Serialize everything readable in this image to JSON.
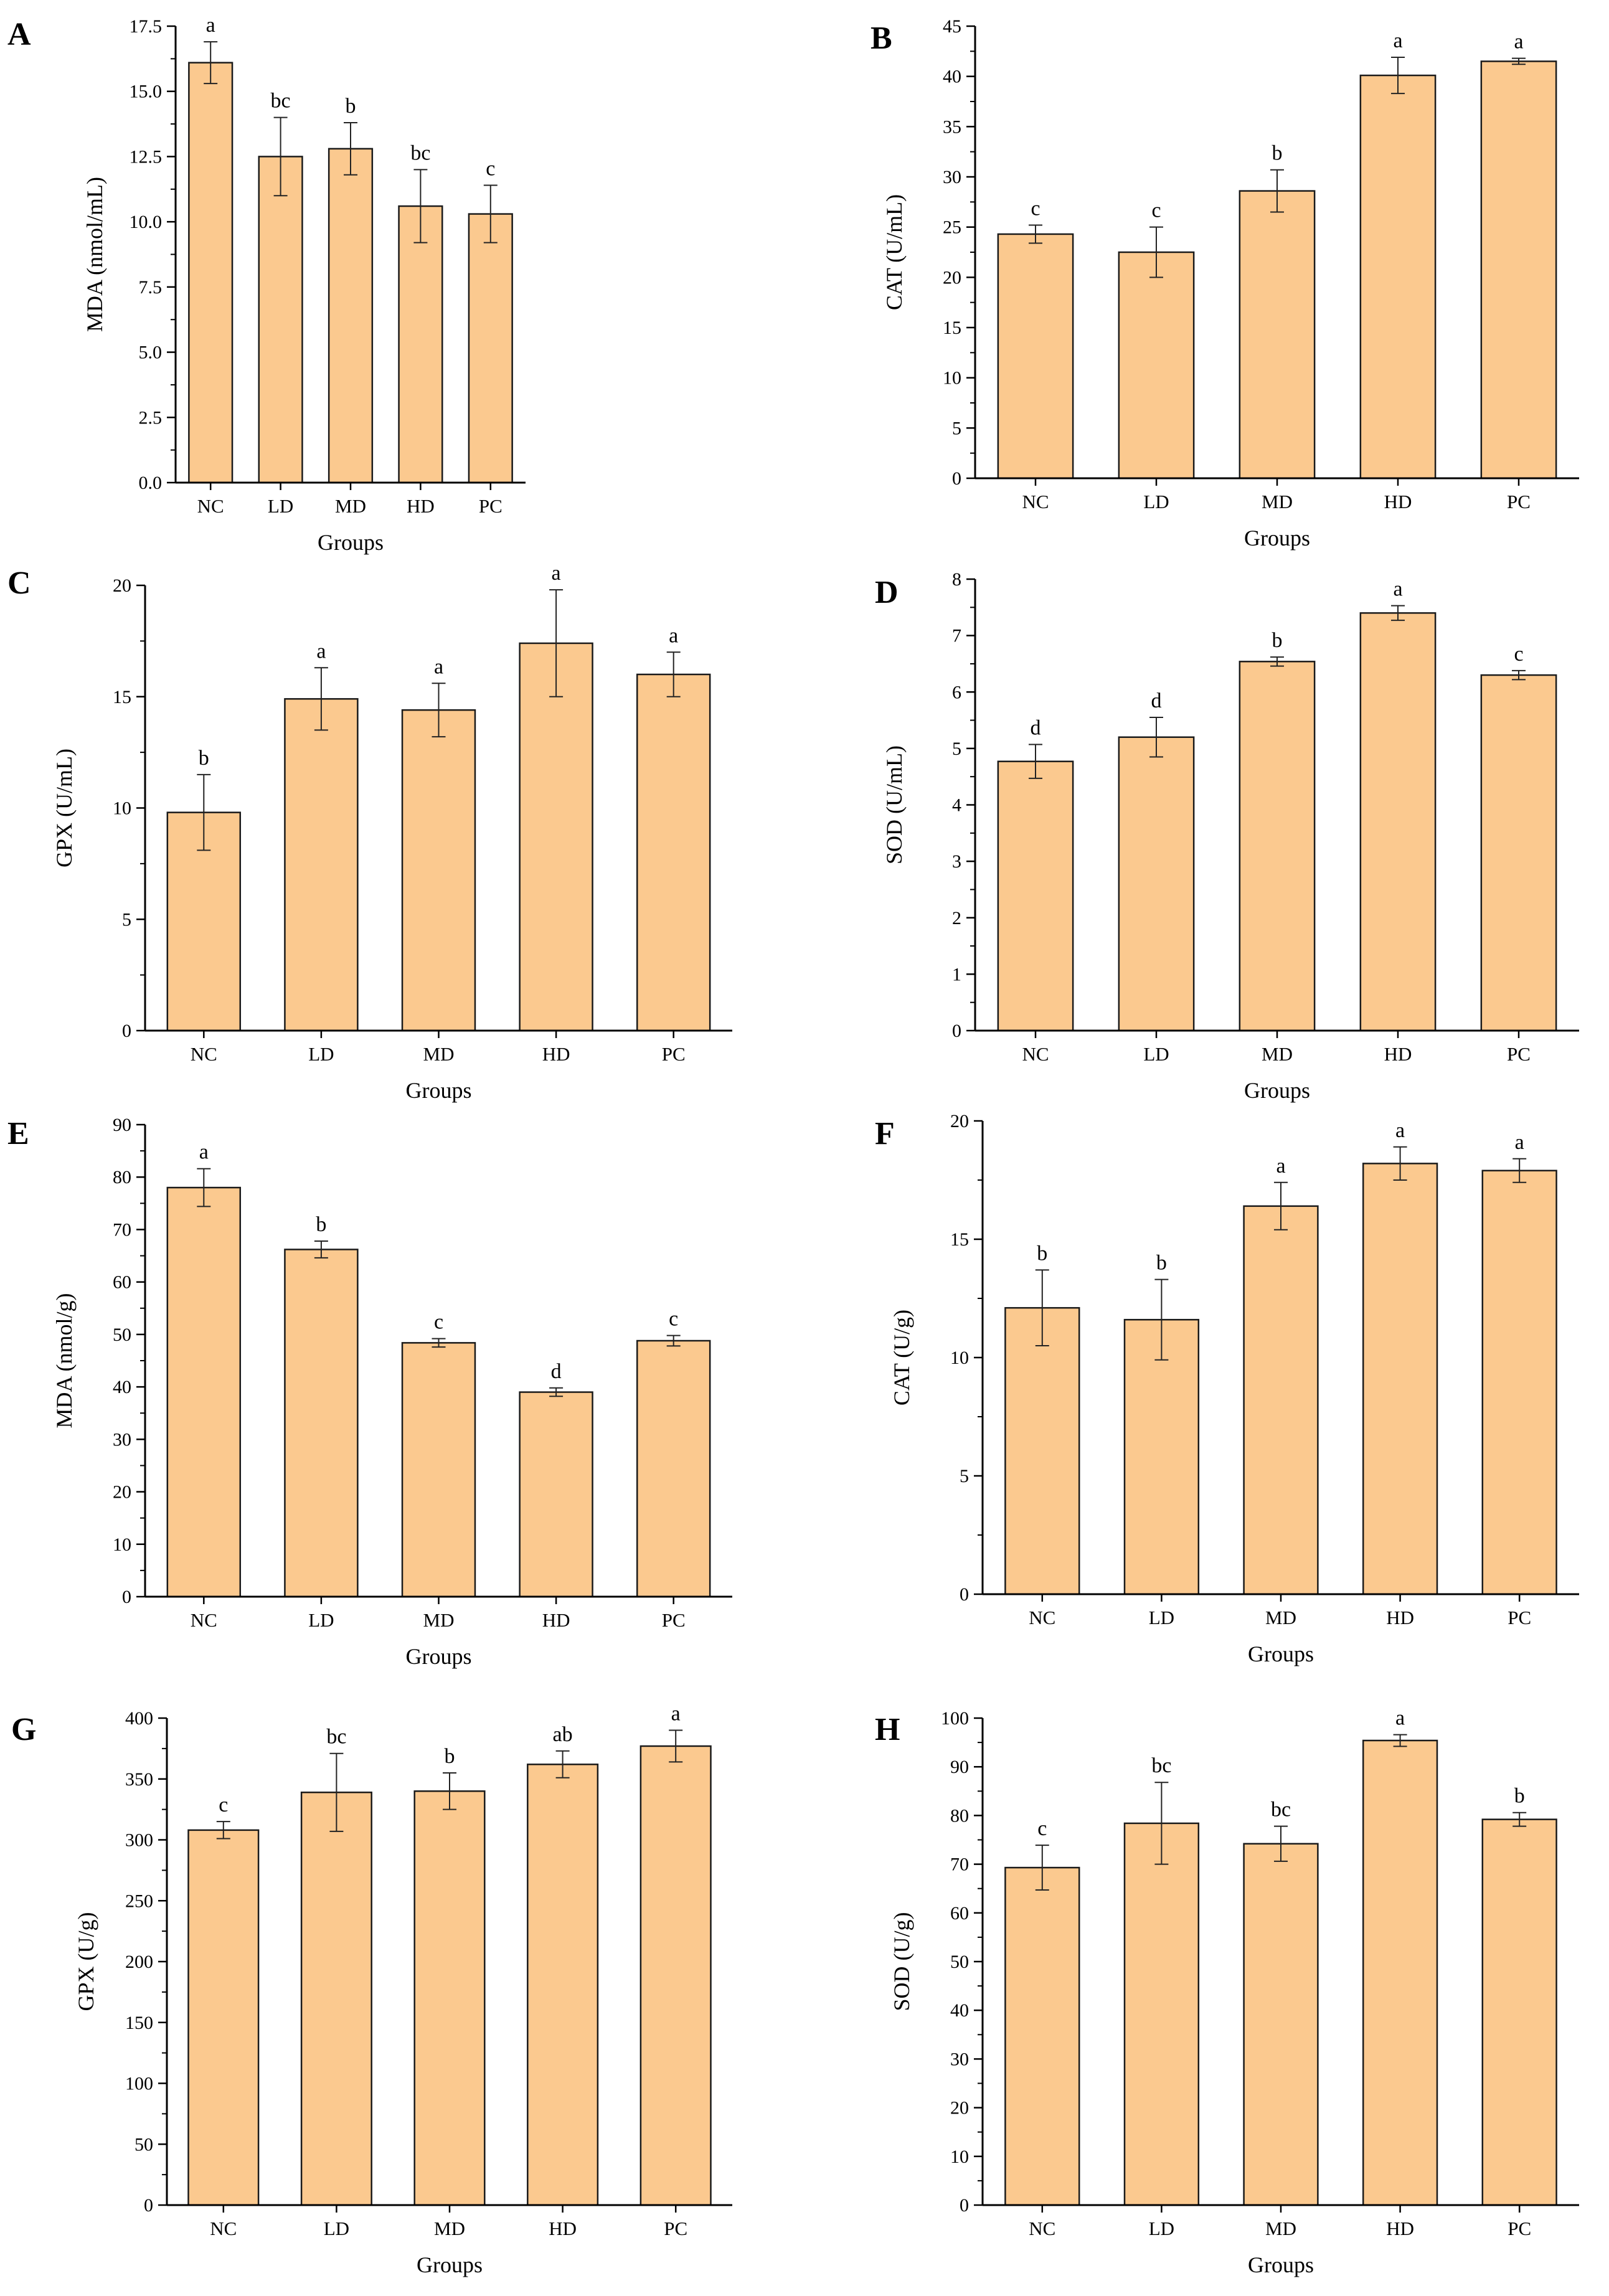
{
  "figure": {
    "bar_color": "#fbc98f",
    "bar_stroke": "#1a1a1a",
    "axis_color": "#000000"
  },
  "chart_data": [
    {
      "panel": "A",
      "type": "bar",
      "categories": [
        "NC",
        "LD",
        "MD",
        "HD",
        "PC"
      ],
      "values": [
        16.1,
        12.5,
        12.8,
        10.6,
        10.3
      ],
      "errors": [
        0.8,
        1.5,
        1.0,
        1.4,
        1.1
      ],
      "significance": [
        "a",
        "bc",
        "b",
        "bc",
        "c"
      ],
      "xlabel": "Groups",
      "ylabel": "MDA (nmol/mL)",
      "ylim": [
        0,
        17.5
      ],
      "yticks": [
        0,
        2.5,
        5,
        7.5,
        10,
        12.5,
        15,
        17.5
      ],
      "ytick_labels": [
        "0.0",
        "2.5",
        "5.0",
        "7.5",
        "10.0",
        "12.5",
        "15.0",
        "17.5"
      ]
    },
    {
      "panel": "B",
      "type": "bar",
      "categories": [
        "NC",
        "LD",
        "MD",
        "HD",
        "PC"
      ],
      "values": [
        24.3,
        22.5,
        28.6,
        40.1,
        41.5
      ],
      "errors": [
        0.9,
        2.5,
        2.1,
        1.8,
        0.3
      ],
      "significance": [
        "c",
        "c",
        "b",
        "a",
        "a"
      ],
      "xlabel": "Groups",
      "ylabel": "CAT (U/mL)",
      "ylim": [
        0,
        45
      ],
      "yticks": [
        0,
        5,
        10,
        15,
        20,
        25,
        30,
        35,
        40,
        45
      ],
      "ytick_labels": [
        "0",
        "5",
        "10",
        "15",
        "20",
        "25",
        "30",
        "35",
        "40",
        "45"
      ]
    },
    {
      "panel": "C",
      "type": "bar",
      "categories": [
        "NC",
        "LD",
        "MD",
        "HD",
        "PC"
      ],
      "values": [
        9.8,
        14.9,
        14.4,
        17.4,
        16.0
      ],
      "errors": [
        1.7,
        1.4,
        1.2,
        2.4,
        1.0
      ],
      "significance": [
        "b",
        "a",
        "a",
        "a",
        "a"
      ],
      "xlabel": "Groups",
      "ylabel": "GPX (U/mL)",
      "ylim": [
        0,
        20
      ],
      "yticks": [
        0,
        5,
        10,
        15,
        20
      ],
      "ytick_labels": [
        "0",
        "5",
        "10",
        "15",
        "20"
      ]
    },
    {
      "panel": "D",
      "type": "bar",
      "categories": [
        "NC",
        "LD",
        "MD",
        "HD",
        "PC"
      ],
      "values": [
        4.77,
        5.2,
        6.54,
        7.4,
        6.3
      ],
      "errors": [
        0.3,
        0.35,
        0.08,
        0.13,
        0.08
      ],
      "significance": [
        "d",
        "d",
        "b",
        "a",
        "c"
      ],
      "xlabel": "Groups",
      "ylabel": "SOD (U/mL)",
      "ylim": [
        0,
        8
      ],
      "yticks": [
        0,
        1,
        2,
        3,
        4,
        5,
        6,
        7,
        8
      ],
      "ytick_labels": [
        "0",
        "1",
        "2",
        "3",
        "4",
        "5",
        "6",
        "7",
        "8"
      ]
    },
    {
      "panel": "E",
      "type": "bar",
      "categories": [
        "NC",
        "LD",
        "MD",
        "HD",
        "PC"
      ],
      "values": [
        78.0,
        66.2,
        48.4,
        39.0,
        48.8
      ],
      "errors": [
        3.6,
        1.6,
        0.8,
        0.8,
        1.0
      ],
      "significance": [
        "a",
        "b",
        "c",
        "d",
        "c"
      ],
      "xlabel": "Groups",
      "ylabel": "MDA (nmol/g)",
      "ylim": [
        0,
        90
      ],
      "yticks": [
        0,
        10,
        20,
        30,
        40,
        50,
        60,
        70,
        80,
        90
      ],
      "ytick_labels": [
        "0",
        "10",
        "20",
        "30",
        "40",
        "50",
        "60",
        "70",
        "80",
        "90"
      ]
    },
    {
      "panel": "F",
      "type": "bar",
      "categories": [
        "NC",
        "LD",
        "MD",
        "HD",
        "PC"
      ],
      "values": [
        12.1,
        11.6,
        16.4,
        18.2,
        17.9
      ],
      "errors": [
        1.6,
        1.7,
        1.0,
        0.7,
        0.5
      ],
      "significance": [
        "b",
        "b",
        "a",
        "a",
        "a"
      ],
      "xlabel": "Groups",
      "ylabel": "CAT (U/g)",
      "ylim": [
        0,
        20
      ],
      "yticks": [
        0,
        5,
        10,
        15,
        20
      ],
      "ytick_labels": [
        "0",
        "5",
        "10",
        "15",
        "20"
      ]
    },
    {
      "panel": "G",
      "type": "bar",
      "categories": [
        "NC",
        "LD",
        "MD",
        "HD",
        "PC"
      ],
      "values": [
        308,
        339,
        340,
        362,
        377
      ],
      "errors": [
        7,
        32,
        15,
        11,
        13
      ],
      "significance": [
        "c",
        "bc",
        "b",
        "ab",
        "a"
      ],
      "xlabel": "Groups",
      "ylabel": "GPX (U/g)",
      "ylim": [
        0,
        400
      ],
      "yticks": [
        0,
        50,
        100,
        150,
        200,
        250,
        300,
        350,
        400
      ],
      "ytick_labels": [
        "0",
        "50",
        "100",
        "150",
        "200",
        "250",
        "300",
        "350",
        "400"
      ]
    },
    {
      "panel": "H",
      "type": "bar",
      "categories": [
        "NC",
        "LD",
        "MD",
        "HD",
        "PC"
      ],
      "values": [
        69.3,
        78.4,
        74.2,
        95.4,
        79.2
      ],
      "errors": [
        4.6,
        8.4,
        3.6,
        1.2,
        1.4
      ],
      "significance": [
        "c",
        "bc",
        "bc",
        "a",
        "b"
      ],
      "xlabel": "Groups",
      "ylabel": "SOD (U/g)",
      "ylim": [
        0,
        100
      ],
      "yticks": [
        0,
        10,
        20,
        30,
        40,
        50,
        60,
        70,
        80,
        90,
        100
      ],
      "ytick_labels": [
        "0",
        "10",
        "20",
        "30",
        "40",
        "50",
        "60",
        "70",
        "80",
        "90",
        "100"
      ]
    }
  ]
}
